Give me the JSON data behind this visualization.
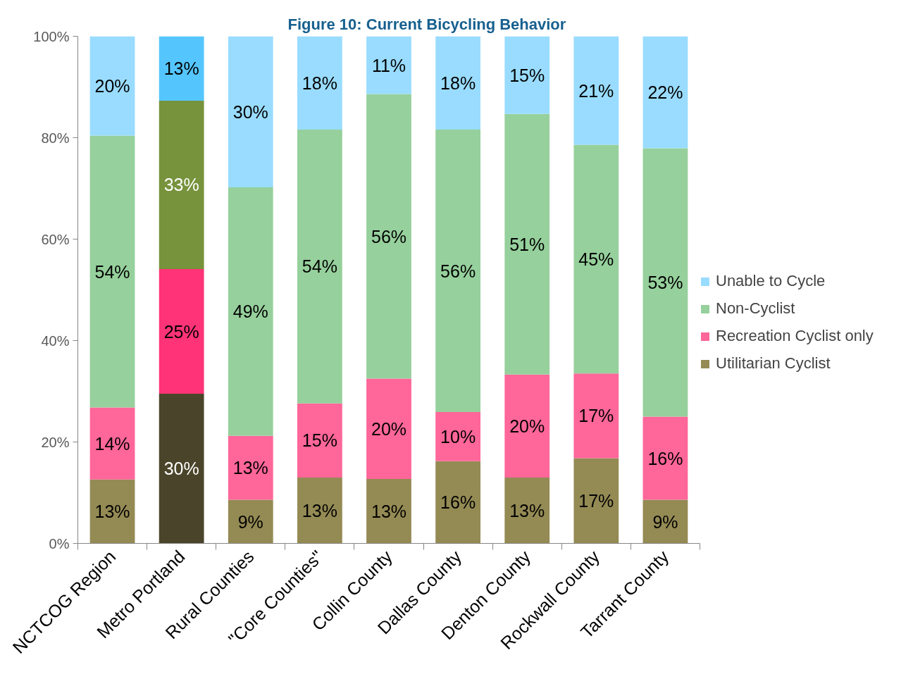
{
  "chart_data": {
    "type": "bar",
    "title": "Figure 10: Current Bicycling Behavior",
    "stacked": true,
    "categories": [
      "NCTCOG Region",
      "Metro Portland",
      "Rural Counties",
      "\"Core Counties\"",
      "Collin County",
      "Dallas County",
      "Denton County",
      "Rockwall County",
      "Tarrant County"
    ],
    "series": [
      {
        "name": "Utilitarian Cyclist",
        "color": "#948a54",
        "colors": [
          "#948a54",
          "#4a452a",
          "#948a54",
          "#948a54",
          "#948a54",
          "#948a54",
          "#948a54",
          "#948a54",
          "#948a54"
        ],
        "values": [
          12.6,
          29.5,
          8.6,
          13.0,
          12.7,
          16.2,
          13.0,
          16.8,
          8.6
        ],
        "value_labels": [
          "13%",
          "30%",
          "9%",
          "13%",
          "13%",
          "16%",
          "13%",
          "17%",
          "9%"
        ]
      },
      {
        "name": "Recreation Cyclist only",
        "color": "#ff6699",
        "colors": [
          "#ff6699",
          "#ff3377",
          "#ff6699",
          "#ff6699",
          "#ff6699",
          "#ff6699",
          "#ff6699",
          "#ff6699",
          "#ff6699"
        ],
        "values": [
          14.2,
          24.6,
          12.6,
          14.6,
          19.8,
          9.7,
          20.3,
          16.7,
          16.4
        ],
        "value_labels": [
          "14%",
          "25%",
          "13%",
          "15%",
          "20%",
          "10%",
          "20%",
          "17%",
          "16%"
        ]
      },
      {
        "name": "Non-Cyclist",
        "color": "#96d09c",
        "colors": [
          "#96d09c",
          "#77933c",
          "#96d09c",
          "#96d09c",
          "#96d09c",
          "#96d09c",
          "#96d09c",
          "#96d09c",
          "#96d09c"
        ],
        "values": [
          53.6,
          33.2,
          49.0,
          54.0,
          56.1,
          55.7,
          51.4,
          45.1,
          52.9
        ],
        "value_labels": [
          "54%",
          "33%",
          "49%",
          "54%",
          "56%",
          "56%",
          "51%",
          "45%",
          "53%"
        ]
      },
      {
        "name": "Unable to Cycle",
        "color": "#99dcff",
        "colors": [
          "#99dcff",
          "#55c6fd",
          "#99dcff",
          "#99dcff",
          "#99dcff",
          "#99dcff",
          "#99dcff",
          "#99dcff",
          "#99dcff"
        ],
        "values": [
          19.6,
          12.7,
          29.8,
          18.4,
          11.4,
          18.4,
          15.3,
          21.4,
          22.1
        ],
        "value_labels": [
          "20%",
          "13%",
          "30%",
          "18%",
          "11%",
          "18%",
          "15%",
          "21%",
          "22%"
        ]
      }
    ],
    "ylim": [
      0,
      100
    ],
    "yticks": [
      {
        "value": 0,
        "label": "0%"
      },
      {
        "value": 20,
        "label": "20%"
      },
      {
        "value": 40,
        "label": "40%"
      },
      {
        "value": 60,
        "label": "60%"
      },
      {
        "value": 80,
        "label": "80%"
      },
      {
        "value": 100,
        "label": "100%"
      }
    ],
    "grid": false,
    "legend": "right"
  }
}
